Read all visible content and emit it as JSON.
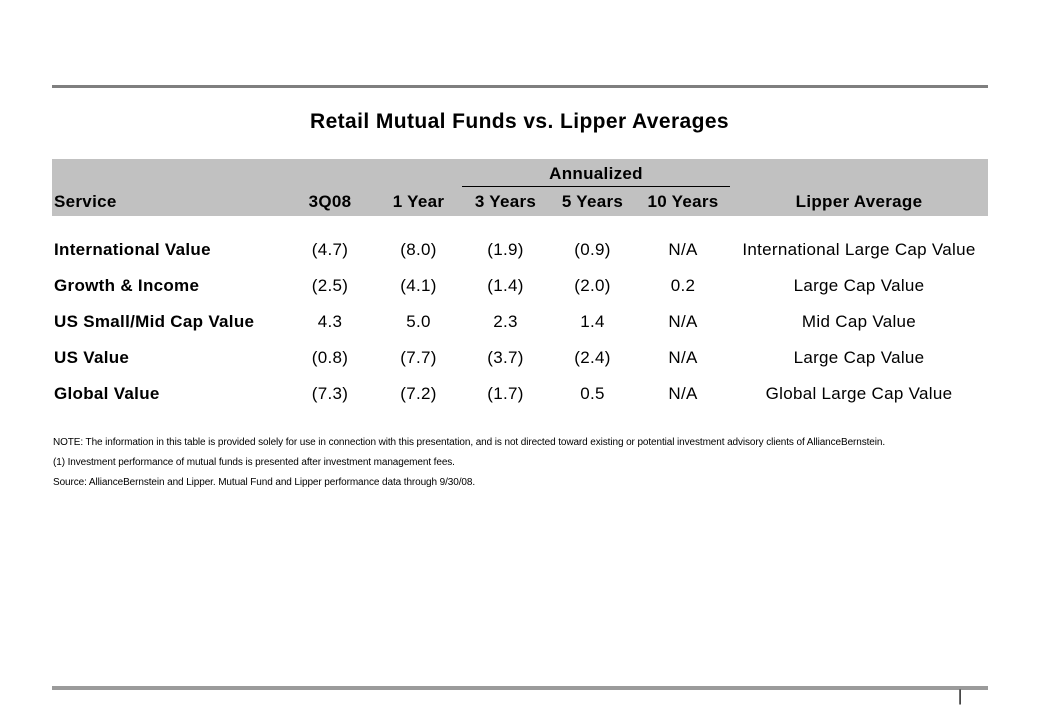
{
  "slide": {
    "title": "Retail Mutual Funds vs. Lipper Averages"
  },
  "colors": {
    "header_band": "#c1c1c1",
    "top_rule": "#7f7f7f",
    "bottom_rule": "#9b9b9b",
    "text": "#000000"
  },
  "table": {
    "group_header": "Annualized",
    "headers": [
      "Service",
      "3Q08",
      "1 Year",
      "3 Years",
      "5 Years",
      "10 Years",
      "Lipper Average"
    ],
    "rows": [
      {
        "service": "International Value",
        "values": [
          "(4.7)",
          "(8.0)",
          "(1.9)",
          "(0.9)",
          "N/A"
        ],
        "lipper_average": "International Large Cap Value"
      },
      {
        "service": "Growth & Income",
        "values": [
          "(2.5)",
          "(4.1)",
          "(1.4)",
          "(2.0)",
          "0.2"
        ],
        "lipper_average": "Large Cap Value"
      },
      {
        "service": "US Small/Mid Cap Value",
        "values": [
          "4.3",
          "5.0",
          "2.3",
          "1.4",
          "N/A"
        ],
        "lipper_average": "Mid Cap Value"
      },
      {
        "service": "US Value",
        "values": [
          "(0.8)",
          "(7.7)",
          "(3.7)",
          "(2.4)",
          "N/A"
        ],
        "lipper_average": "Large Cap Value"
      },
      {
        "service": "Global Value",
        "values": [
          "(7.3)",
          "(7.2)",
          "(1.7)",
          "0.5",
          "N/A"
        ],
        "lipper_average": "Global Large Cap Value"
      }
    ]
  },
  "footnotes": [
    "NOTE:  The information in this table is provided solely for use in connection with this presentation, and is not directed toward existing or potential investment advisory clients of AllianceBernstein.",
    "(1) Investment performance of mutual funds is presented after investment management fees.",
    "Source: AllianceBernstein and Lipper.  Mutual Fund and Lipper performance data through 9/30/08."
  ],
  "footer": {
    "page_marker": "|"
  }
}
